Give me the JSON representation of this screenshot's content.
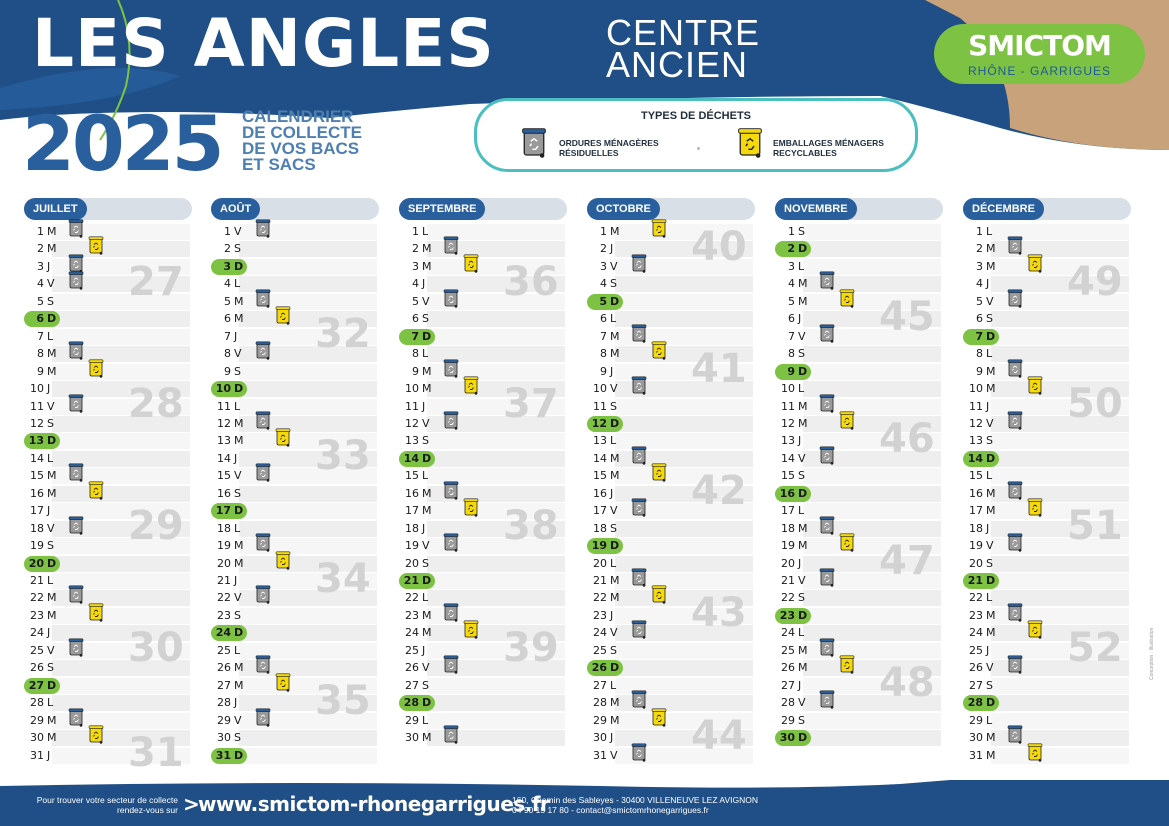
{
  "header": {
    "title": "LES ANGLES",
    "subtitle_line1": "CENTRE",
    "subtitle_line2": "ANCIEN",
    "year": "2025",
    "calendar_title": [
      "CALENDRIER",
      "DE COLLECTE",
      "DE VOS BACS",
      "ET SACS"
    ]
  },
  "logo": {
    "name": "SMICTOM",
    "sub": "RHÔNE - GARRIGUES"
  },
  "legend": {
    "title": "TYPES DE DÉCHETS",
    "items": [
      {
        "icon": "grey-bin-icon",
        "color": "#9a9a9a",
        "lines": [
          "ORDURES MÉNAGÈRES",
          "RÉSIDUELLES"
        ]
      },
      {
        "icon": "yellow-bin-icon",
        "color": "#f5d90a",
        "lines": [
          "EMBALLAGES MÉNAGERS",
          "RECYCLABLES"
        ]
      }
    ]
  },
  "colors": {
    "navy": "#1f4f86",
    "blue": "#2a5f9e",
    "green": "#7dc242",
    "teal": "#4bbfbf",
    "grey_bin": "#9a9a9a",
    "yellow_bin": "#f5d90a"
  },
  "months": [
    {
      "name": "JUILLET",
      "first_weekday": 1,
      "days": 31,
      "grey": [
        1,
        3,
        4,
        8,
        11,
        15,
        18,
        22,
        25,
        29
      ],
      "yellow": [
        2,
        9,
        16,
        23,
        30
      ],
      "weeks": [
        {
          "label": "27",
          "day": 3
        },
        {
          "label": "28",
          "day": 10
        },
        {
          "label": "29",
          "day": 17
        },
        {
          "label": "30",
          "day": 24
        },
        {
          "label": "31",
          "day": 30
        }
      ]
    },
    {
      "name": "AOÛT",
      "first_weekday": 4,
      "days": 31,
      "grey": [
        1,
        5,
        8,
        12,
        15,
        19,
        22,
        26,
        29
      ],
      "yellow": [
        6,
        13,
        20,
        27
      ],
      "weeks": [
        {
          "label": "32",
          "day": 6
        },
        {
          "label": "33",
          "day": 13
        },
        {
          "label": "34",
          "day": 20
        },
        {
          "label": "35",
          "day": 27
        }
      ]
    },
    {
      "name": "SEPTEMBRE",
      "first_weekday": 0,
      "days": 30,
      "grey": [
        2,
        5,
        9,
        12,
        16,
        19,
        23,
        26,
        30
      ],
      "yellow": [
        3,
        10,
        17,
        24
      ],
      "weeks": [
        {
          "label": "36",
          "day": 3
        },
        {
          "label": "37",
          "day": 10
        },
        {
          "label": "38",
          "day": 17
        },
        {
          "label": "39",
          "day": 24
        }
      ]
    },
    {
      "name": "OCTOBRE",
      "first_weekday": 2,
      "days": 31,
      "grey": [
        3,
        7,
        10,
        14,
        17,
        21,
        24,
        28,
        31
      ],
      "yellow": [
        1,
        8,
        15,
        22,
        29
      ],
      "weeks": [
        {
          "label": "40",
          "day": 1
        },
        {
          "label": "41",
          "day": 8
        },
        {
          "label": "42",
          "day": 15
        },
        {
          "label": "43",
          "day": 22
        },
        {
          "label": "44",
          "day": 29
        }
      ]
    },
    {
      "name": "NOVEMBRE",
      "first_weekday": 5,
      "days": 30,
      "grey": [
        4,
        7,
        11,
        14,
        18,
        21,
        25,
        28
      ],
      "yellow": [
        5,
        12,
        19,
        26
      ],
      "weeks": [
        {
          "label": "45",
          "day": 5
        },
        {
          "label": "46",
          "day": 12
        },
        {
          "label": "47",
          "day": 19
        },
        {
          "label": "48",
          "day": 26
        }
      ]
    },
    {
      "name": "DÉCEMBRE",
      "first_weekday": 0,
      "days": 31,
      "grey": [
        2,
        5,
        9,
        12,
        16,
        19,
        23,
        26,
        30
      ],
      "yellow": [
        3,
        10,
        17,
        24,
        31
      ],
      "weeks": [
        {
          "label": "49",
          "day": 3
        },
        {
          "label": "50",
          "day": 10
        },
        {
          "label": "51",
          "day": 17
        },
        {
          "label": "52",
          "day": 24
        }
      ]
    }
  ],
  "weekday_letters": [
    "L",
    "M",
    "M",
    "J",
    "V",
    "S",
    "D"
  ],
  "footer": {
    "left_line1": "Pour trouver votre secteur de collecte",
    "left_line2": "rendez-vous sur",
    "arrow": ">",
    "url": "www.smictom-rhonegarrigues.fr",
    "address_line1": "160, Chemin des Sableyes - 30400 VILLENEUVE LEZ AVIGNON",
    "address_line2": "04 90 15 17 80 - contact@smictomrhonegarrigues.fr"
  },
  "credit": "Conception : Illustration"
}
